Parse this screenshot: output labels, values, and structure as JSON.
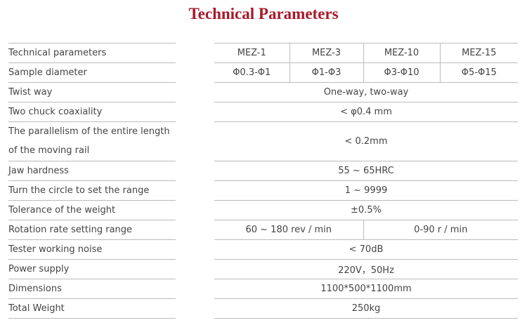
{
  "title": "Technical Parameters",
  "labels": [
    "Technical parameters",
    "Sample diameter",
    "Twist way",
    "Two chuck coaxiality",
    "The parallelism of the entire length of the moving rail",
    "Jaw hardness",
    "Turn the circle to set the range",
    "Tolerance of the weight",
    "Rotation rate setting range",
    "Tester working noise",
    "Power supply",
    "Dimensions",
    "Total Weight"
  ],
  "models": [
    "MEZ-1",
    "MEZ-3",
    "MEZ-10",
    "MEZ-15"
  ],
  "diameters": [
    "Φ0.3-Φ1",
    "Φ1-Φ3",
    "Φ3-Φ10",
    "Φ5-Φ15"
  ],
  "twist_way": "One-way, two-way",
  "coaxiality": "< φ0.4 mm",
  "parallelism": "< 0.2mm",
  "jaw_hardness": "55 ~ 65HRC",
  "circle_range": "1 ~ 9999",
  "tolerance": "±0.5%",
  "rotation": [
    "60 ~ 180 rev / min",
    "0-90 r / min"
  ],
  "noise": "< 70dB",
  "power": "220V，50Hz",
  "dimensions": "1100*500*1100mm",
  "weight": "250kg"
}
